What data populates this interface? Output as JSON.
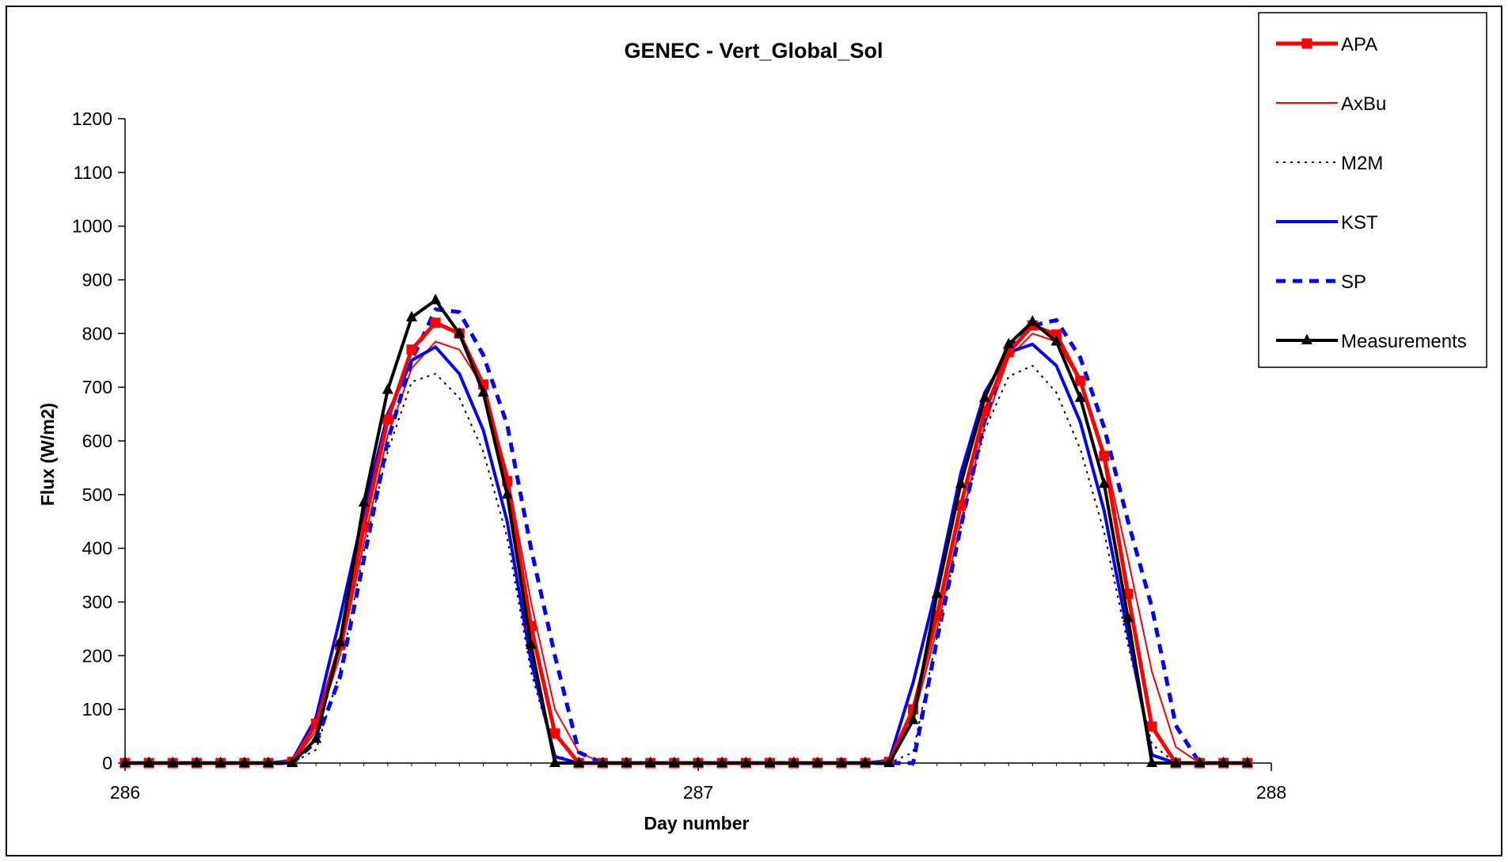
{
  "chart_data": {
    "type": "line",
    "title": "GENEC -  Vert_Global_Sol",
    "xlabel": "Day number",
    "ylabel": "Flux (W/m2)",
    "xlim": [
      286,
      288
    ],
    "ylim": [
      0,
      1200
    ],
    "xticks": [
      286,
      287,
      288
    ],
    "yticks": [
      0,
      100,
      200,
      300,
      400,
      500,
      600,
      700,
      800,
      900,
      1000,
      1100,
      1200
    ],
    "grid": false,
    "legend_position": "top-right",
    "x": [
      286.0,
      286.0417,
      286.0833,
      286.125,
      286.1667,
      286.2083,
      286.25,
      286.2917,
      286.3333,
      286.375,
      286.4167,
      286.4583,
      286.5,
      286.5417,
      286.5833,
      286.625,
      286.6667,
      286.7083,
      286.75,
      286.7917,
      286.8333,
      286.875,
      286.9167,
      286.9583,
      287.0,
      287.0417,
      287.0833,
      287.125,
      287.1667,
      287.2083,
      287.25,
      287.2917,
      287.3333,
      287.375,
      287.4167,
      287.4583,
      287.5,
      287.5417,
      287.5833,
      287.625,
      287.6667,
      287.7083,
      287.75,
      287.7917,
      287.8333,
      287.875,
      287.9167,
      287.9583
    ],
    "series": [
      {
        "name": "APA",
        "color": "#ff0000",
        "style": "solid",
        "width": 5,
        "marker": "square",
        "values": [
          0,
          0,
          0,
          0,
          0,
          0,
          0,
          2,
          73,
          220,
          440,
          640,
          770,
          820,
          800,
          705,
          525,
          255,
          55,
          0,
          0,
          0,
          0,
          0,
          0,
          0,
          0,
          0,
          0,
          0,
          0,
          0,
          2,
          100,
          275,
          480,
          655,
          765,
          815,
          798,
          712,
          572,
          315,
          68,
          0,
          0,
          0,
          0
        ]
      },
      {
        "name": "AxBu",
        "color": "#ff0000",
        "style": "solid",
        "width": 2,
        "marker": "none",
        "values": [
          0,
          0,
          0,
          0,
          0,
          0,
          0,
          0,
          60,
          200,
          410,
          610,
          735,
          785,
          770,
          700,
          540,
          300,
          100,
          20,
          0,
          0,
          0,
          0,
          0,
          0,
          0,
          0,
          0,
          0,
          0,
          0,
          0,
          80,
          250,
          450,
          630,
          755,
          800,
          785,
          710,
          580,
          380,
          170,
          30,
          0,
          0,
          0
        ]
      },
      {
        "name": "M2M",
        "color": "#000000",
        "style": "dotted",
        "width": 2,
        "marker": "none",
        "values": [
          0,
          0,
          0,
          0,
          0,
          0,
          0,
          0,
          25,
          170,
          395,
          580,
          710,
          725,
          680,
          580,
          420,
          170,
          15,
          0,
          0,
          0,
          0,
          0,
          0,
          0,
          0,
          0,
          0,
          0,
          0,
          0,
          0,
          20,
          235,
          440,
          620,
          720,
          740,
          690,
          585,
          430,
          220,
          35,
          0,
          0,
          0,
          0
        ]
      },
      {
        "name": "KST",
        "color": "#0000ff",
        "style": "solid",
        "width": 4,
        "marker": "none",
        "values": [
          0,
          0,
          0,
          0,
          0,
          0,
          0,
          5,
          85,
          270,
          470,
          650,
          750,
          775,
          725,
          620,
          450,
          190,
          12,
          0,
          0,
          0,
          0,
          0,
          0,
          0,
          0,
          0,
          0,
          0,
          0,
          0,
          5,
          150,
          330,
          540,
          690,
          765,
          780,
          740,
          635,
          470,
          240,
          15,
          0,
          0,
          0,
          0
        ]
      },
      {
        "name": "SP",
        "color": "#0000ff",
        "style": "dashed",
        "width": 5,
        "marker": "none",
        "values": [
          0,
          0,
          0,
          0,
          0,
          0,
          0,
          0,
          40,
          160,
          380,
          600,
          750,
          845,
          840,
          760,
          630,
          400,
          200,
          20,
          0,
          0,
          0,
          0,
          0,
          0,
          0,
          0,
          0,
          0,
          0,
          0,
          0,
          0,
          230,
          440,
          640,
          775,
          815,
          825,
          755,
          625,
          450,
          290,
          70,
          0,
          0,
          0
        ]
      },
      {
        "name": "Measurements",
        "color": "#000000",
        "style": "solid",
        "width": 4,
        "marker": "triangle",
        "values": [
          0,
          0,
          0,
          0,
          0,
          0,
          0,
          0,
          45,
          225,
          485,
          695,
          830,
          862,
          800,
          690,
          500,
          220,
          0,
          0,
          0,
          0,
          0,
          0,
          0,
          0,
          0,
          0,
          0,
          0,
          0,
          0,
          0,
          80,
          315,
          520,
          680,
          780,
          822,
          785,
          680,
          520,
          270,
          0,
          0,
          0,
          0,
          0
        ]
      }
    ]
  }
}
